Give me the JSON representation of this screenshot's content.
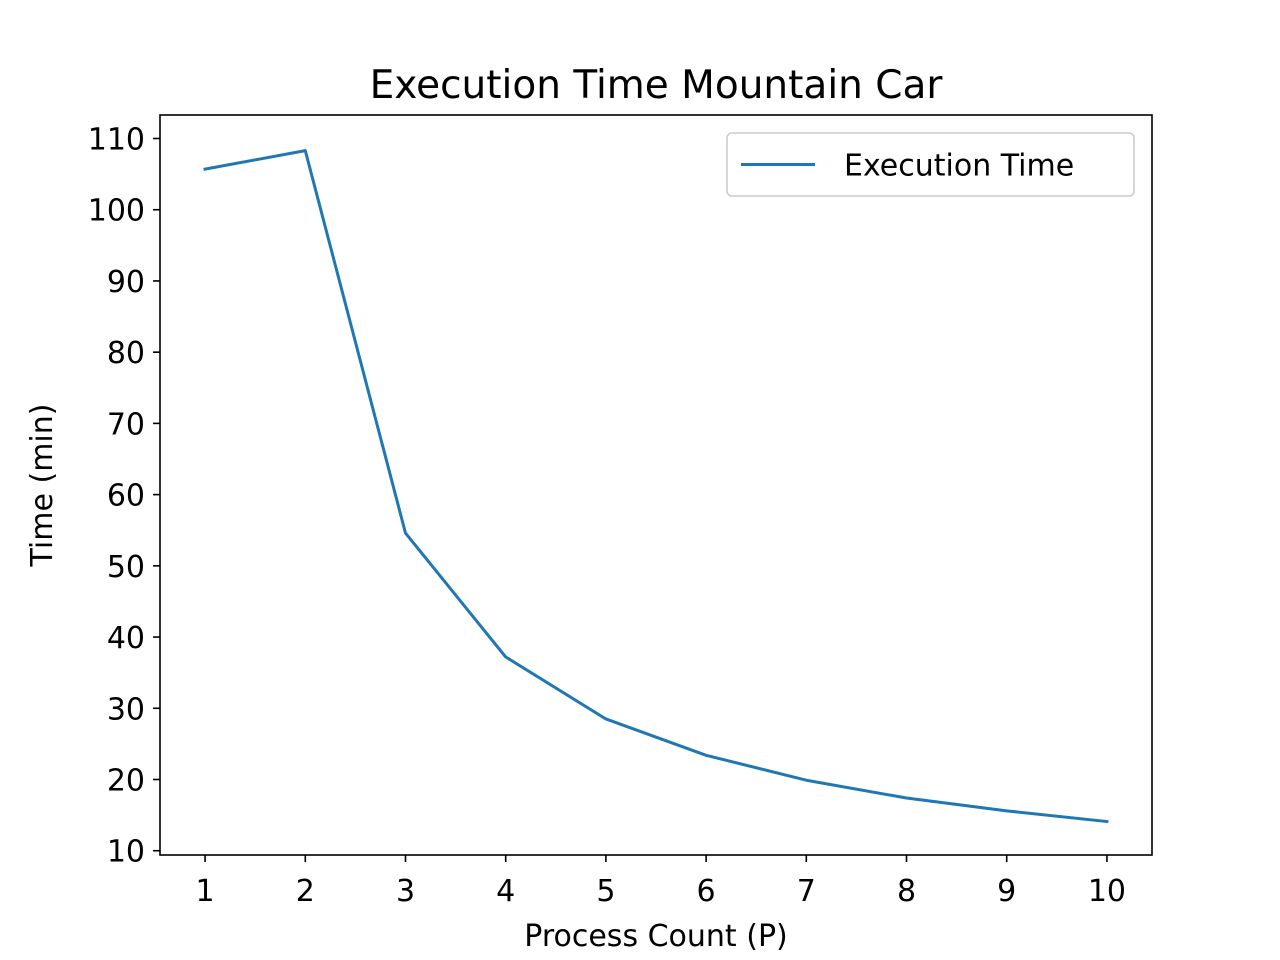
{
  "chart_data": {
    "type": "line",
    "title": "Execution Time Mountain Car",
    "xlabel": "Process Count (P)",
    "ylabel": "Time (min)",
    "x": [
      1,
      2,
      3,
      4,
      5,
      6,
      7,
      8,
      9,
      10
    ],
    "series": [
      {
        "name": "Execution Time",
        "color": "#1f77b4",
        "values": [
          105.7,
          108.3,
          54.6,
          37.2,
          28.5,
          23.4,
          19.9,
          17.4,
          15.6,
          14.1
        ]
      }
    ],
    "xticks": [
      "1",
      "2",
      "3",
      "4",
      "5",
      "6",
      "7",
      "8",
      "9",
      "10"
    ],
    "yticks": [
      "10",
      "20",
      "30",
      "40",
      "50",
      "60",
      "70",
      "80",
      "90",
      "100",
      "110"
    ],
    "xlim": [
      0.55,
      10.45
    ],
    "ylim": [
      9.4,
      113.3
    ],
    "grid": false,
    "legend_position": "top-right"
  }
}
